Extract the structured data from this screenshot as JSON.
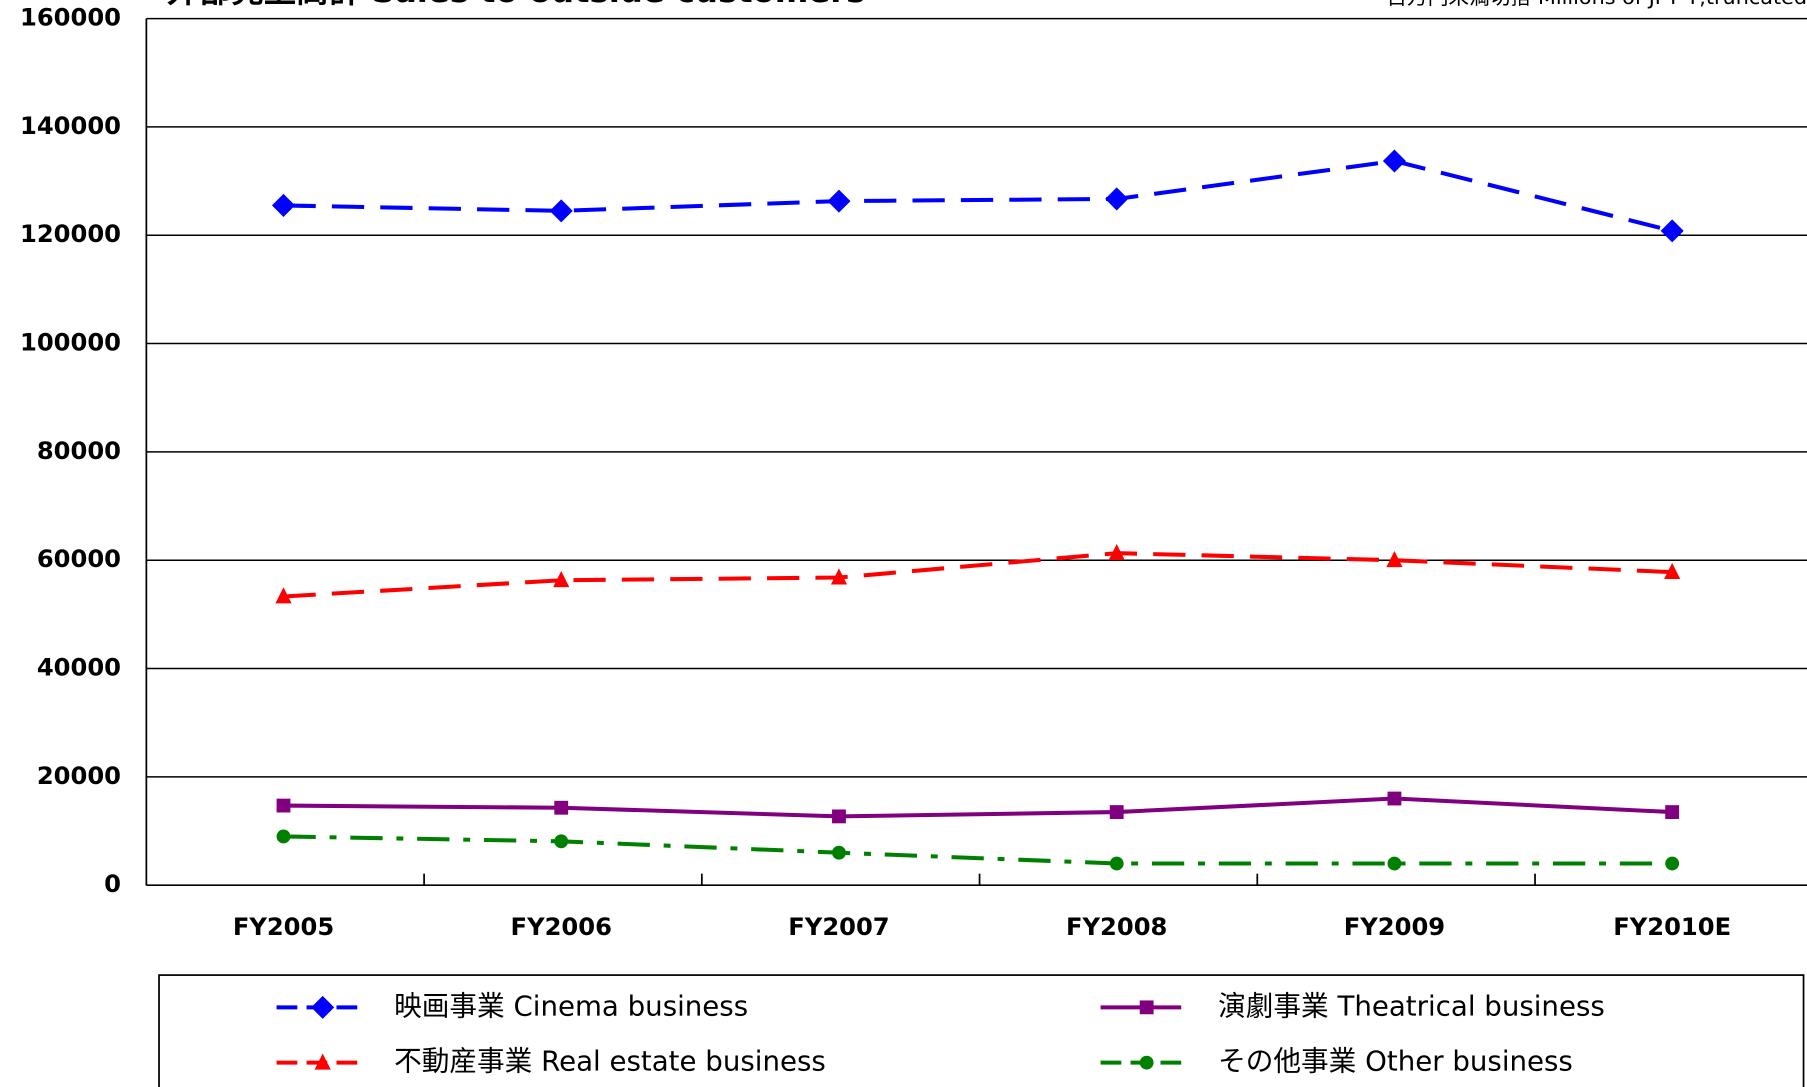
{
  "chart_data": {
    "type": "line",
    "title": "外部売上高計 Sales to outside customers",
    "note": "百万円未満切捨 Millions of JPY ¥,truncated",
    "categories": [
      "FY2005",
      "FY2006",
      "FY2007",
      "FY2008",
      "FY2009",
      "FY2010E"
    ],
    "ylim": [
      0,
      160000
    ],
    "yticks": [
      0,
      20000,
      40000,
      60000,
      80000,
      100000,
      120000,
      140000,
      160000
    ],
    "grid": true,
    "legend": "bottom",
    "series": [
      {
        "name": "映画事業 Cinema business",
        "color": "#0000ff",
        "values": [
          125500,
          124500,
          126300,
          126700,
          133700,
          120800
        ]
      },
      {
        "name": "演劇事業 Theatrical business",
        "color": "#800080",
        "values": [
          14700,
          14300,
          12700,
          13500,
          16000,
          13500
        ]
      },
      {
        "name": "不動産事業 Real estate business",
        "color": "#ff0000",
        "values": [
          53300,
          56300,
          56800,
          61300,
          60000,
          57800
        ]
      },
      {
        "name": "その他事業 Other business",
        "color": "#008000",
        "values": [
          9000,
          8100,
          6000,
          4000,
          4000,
          4000
        ]
      }
    ]
  }
}
